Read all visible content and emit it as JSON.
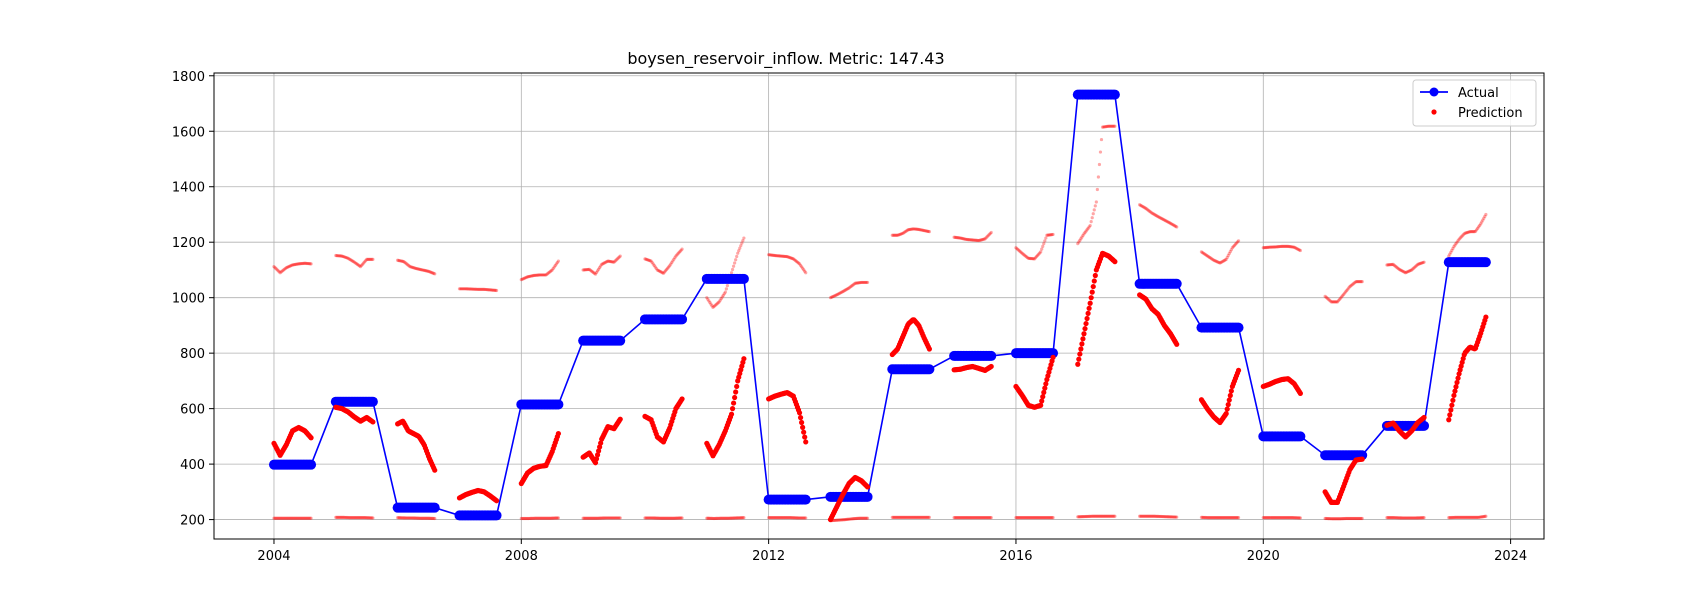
{
  "chart_data": {
    "type": "line",
    "title": "boysen_reservoir_inflow. Metric: 147.43",
    "xlabel": "",
    "ylabel": "",
    "xlim": [
      2003.03,
      2024.54
    ],
    "ylim": [
      130,
      1810
    ],
    "xticks": [
      2004,
      2008,
      2012,
      2016,
      2020,
      2024
    ],
    "yticks": [
      200,
      400,
      600,
      800,
      1000,
      1200,
      1400,
      1600,
      1800
    ],
    "grid": true,
    "legend_position": "top-right",
    "colors": {
      "actual": "#0000ff",
      "prediction": "#ff0000"
    },
    "series": [
      {
        "name": "Actual",
        "style": "line-with-markers",
        "color": "#0000ff",
        "points": [
          [
            2004.0,
            398
          ],
          [
            2004.6,
            398
          ],
          [
            2005.0,
            625
          ],
          [
            2005.6,
            625
          ],
          [
            2006.0,
            243
          ],
          [
            2006.6,
            243
          ],
          [
            2007.0,
            215
          ],
          [
            2007.6,
            215
          ],
          [
            2008.0,
            615
          ],
          [
            2008.6,
            615
          ],
          [
            2009.0,
            845
          ],
          [
            2009.6,
            845
          ],
          [
            2010.0,
            922
          ],
          [
            2010.6,
            922
          ],
          [
            2011.0,
            1068
          ],
          [
            2011.6,
            1068
          ],
          [
            2012.0,
            272
          ],
          [
            2012.6,
            272
          ],
          [
            2013.0,
            282
          ],
          [
            2013.6,
            282
          ],
          [
            2014.0,
            742
          ],
          [
            2014.6,
            742
          ],
          [
            2015.0,
            790
          ],
          [
            2015.6,
            790
          ],
          [
            2016.0,
            800
          ],
          [
            2016.6,
            800
          ],
          [
            2017.0,
            1732
          ],
          [
            2017.6,
            1732
          ],
          [
            2018.0,
            1050
          ],
          [
            2018.6,
            1050
          ],
          [
            2019.0,
            892
          ],
          [
            2019.6,
            892
          ],
          [
            2020.0,
            500
          ],
          [
            2020.6,
            500
          ],
          [
            2021.0,
            432
          ],
          [
            2021.6,
            432
          ],
          [
            2022.0,
            538
          ],
          [
            2022.6,
            538
          ],
          [
            2023.0,
            1128
          ],
          [
            2023.6,
            1128
          ]
        ]
      },
      {
        "name": "Prediction",
        "style": "scatter",
        "color": "#ff0000",
        "segments": [
          {
            "x0": 2004.0,
            "x1": 2004.6,
            "y": [
              475,
              432,
              470,
              520,
              532,
              520,
              495
            ]
          },
          {
            "x0": 2005.0,
            "x1": 2005.6,
            "y": [
              605,
              600,
              588,
              570,
              555,
              568,
              552
            ]
          },
          {
            "x0": 2006.0,
            "x1": 2006.6,
            "y": [
              545,
              555,
              520,
              510,
              500,
              470,
              420,
              378
            ]
          },
          {
            "x0": 2007.0,
            "x1": 2007.6,
            "y": [
              278,
              290,
              298,
              305,
              300,
              285,
              268
            ]
          },
          {
            "x0": 2008.0,
            "x1": 2008.6,
            "y": [
              330,
              368,
              385,
              392,
              395,
              445,
              510
            ]
          },
          {
            "x0": 2009.0,
            "x1": 2009.6,
            "y": [
              425,
              440,
              405,
              490,
              535,
              528,
              562
            ]
          },
          {
            "x0": 2010.0,
            "x1": 2010.6,
            "y": [
              572,
              560,
              498,
              480,
              530,
              600,
              635
            ]
          },
          {
            "x0": 2011.0,
            "x1": 2011.6,
            "y": [
              475,
              430,
              470,
              520,
              580,
              700,
              780
            ]
          },
          {
            "x0": 2012.0,
            "x1": 2012.6,
            "y": [
              635,
              645,
              652,
              658,
              645,
              585,
              480
            ]
          },
          {
            "x0": 2013.0,
            "x1": 2013.6,
            "y": [
              200,
              245,
              290,
              330,
              352,
              340,
              318
            ]
          },
          {
            "x0": 2014.0,
            "x1": 2014.6,
            "y": [
              795,
              815,
              860,
              905,
              922,
              900,
              855,
              815
            ]
          },
          {
            "x0": 2015.0,
            "x1": 2015.6,
            "y": [
              740,
              742,
              748,
              752,
              745,
              738,
              752
            ]
          },
          {
            "x0": 2016.0,
            "x1": 2016.6,
            "y": [
              680,
              648,
              612,
              605,
              612,
              705,
              785
            ]
          },
          {
            "x0": 2017.0,
            "x1": 2017.6,
            "y": [
              760,
              870,
              980,
              1100,
              1160,
              1150,
              1130
            ]
          },
          {
            "x0": 2018.0,
            "x1": 2018.6,
            "y": [
              1010,
              995,
              960,
              940,
              900,
              870,
              832
            ]
          },
          {
            "x0": 2019.0,
            "x1": 2019.6,
            "y": [
              632,
              598,
              570,
              550,
              582,
              680,
              738
            ]
          },
          {
            "x0": 2020.0,
            "x1": 2020.6,
            "y": [
              680,
              688,
              698,
              705,
              708,
              690,
              655
            ]
          },
          {
            "x0": 2021.0,
            "x1": 2021.6,
            "y": [
              300,
              262,
              262,
              320,
              380,
              415,
              418
            ]
          },
          {
            "x0": 2022.0,
            "x1": 2022.6,
            "y": [
              540,
              548,
              520,
              498,
              520,
              550,
              568
            ]
          },
          {
            "x0": 2023.0,
            "x1": 2023.6,
            "y": [
              560,
              650,
              730,
              800,
              822,
              815,
              870,
              930
            ]
          }
        ]
      },
      {
        "name": "",
        "style": "scatter-faint",
        "color": "#ff0000",
        "segments": [
          {
            "x0": 2004.0,
            "x1": 2004.6,
            "y": [
              1112,
              1090,
              1108,
              1118,
              1122,
              1124,
              1122
            ]
          },
          {
            "x0": 2005.0,
            "x1": 2005.6,
            "y": [
              1152,
              1150,
              1142,
              1128,
              1112,
              1138,
              1138
            ]
          },
          {
            "x0": 2006.0,
            "x1": 2006.6,
            "y": [
              1135,
              1130,
              1112,
              1105,
              1100,
              1095,
              1086
            ]
          },
          {
            "x0": 2007.0,
            "x1": 2007.6,
            "y": [
              1032,
              1032,
              1031,
              1030,
              1030,
              1028,
              1026
            ]
          },
          {
            "x0": 2008.0,
            "x1": 2008.6,
            "y": [
              1065,
              1075,
              1080,
              1082,
              1082,
              1100,
              1132
            ]
          },
          {
            "x0": 2009.0,
            "x1": 2009.6,
            "y": [
              1100,
              1102,
              1085,
              1120,
              1132,
              1128,
              1150
            ]
          },
          {
            "x0": 2010.0,
            "x1": 2010.6,
            "y": [
              1140,
              1132,
              1100,
              1088,
              1115,
              1150,
              1175
            ]
          },
          {
            "x0": 2011.0,
            "x1": 2011.6,
            "y": [
              1000,
              965,
              985,
              1020,
              1090,
              1160,
              1215
            ]
          },
          {
            "x0": 2012.0,
            "x1": 2012.6,
            "y": [
              1155,
              1152,
              1150,
              1148,
              1140,
              1122,
              1090
            ]
          },
          {
            "x0": 2013.0,
            "x1": 2013.6,
            "y": [
              1000,
              1010,
              1022,
              1035,
              1052,
              1055,
              1055
            ]
          },
          {
            "x0": 2014.0,
            "x1": 2014.6,
            "y": [
              1225,
              1225,
              1232,
              1245,
              1248,
              1246,
              1242,
              1238
            ]
          },
          {
            "x0": 2015.0,
            "x1": 2015.6,
            "y": [
              1218,
              1215,
              1210,
              1208,
              1206,
              1212,
              1235
            ]
          },
          {
            "x0": 2016.0,
            "x1": 2016.6,
            "y": [
              1180,
              1160,
              1142,
              1140,
              1165,
              1225,
              1228
            ]
          },
          {
            "x0": 2017.0,
            "x1": 2017.6,
            "y": [
              1195,
              1230,
              1260,
              1345,
              1615,
              1618,
              1618
            ]
          },
          {
            "x0": 2018.0,
            "x1": 2018.6,
            "y": [
              1335,
              1322,
              1305,
              1292,
              1280,
              1268,
              1255
            ]
          },
          {
            "x0": 2019.0,
            "x1": 2019.6,
            "y": [
              1165,
              1150,
              1135,
              1125,
              1138,
              1180,
              1205
            ]
          },
          {
            "x0": 2020.0,
            "x1": 2020.6,
            "y": [
              1180,
              1182,
              1183,
              1185,
              1185,
              1182,
              1170
            ]
          },
          {
            "x0": 2021.0,
            "x1": 2021.6,
            "y": [
              1005,
              985,
              985,
              1012,
              1040,
              1058,
              1058
            ]
          },
          {
            "x0": 2022.0,
            "x1": 2022.6,
            "y": [
              1118,
              1120,
              1102,
              1090,
              1100,
              1120,
              1128
            ]
          },
          {
            "x0": 2023.0,
            "x1": 2023.6,
            "y": [
              1150,
              1185,
              1212,
              1232,
              1238,
              1238,
              1265,
              1300
            ]
          },
          {
            "x0": 2004.0,
            "x1": 2004.6,
            "y": [
              205,
              205,
              205,
              205,
              205,
              205
            ]
          },
          {
            "x0": 2005.0,
            "x1": 2005.6,
            "y": [
              208,
              208,
              207,
              207,
              207,
              206
            ]
          },
          {
            "x0": 2006.0,
            "x1": 2006.6,
            "y": [
              207,
              206,
              206,
              205,
              205,
              204
            ]
          },
          {
            "x0": 2008.0,
            "x1": 2008.6,
            "y": [
              204,
              204,
              205,
              205,
              205,
              206
            ]
          },
          {
            "x0": 2009.0,
            "x1": 2009.6,
            "y": [
              205,
              205,
              205,
              206,
              206,
              206
            ]
          },
          {
            "x0": 2010.0,
            "x1": 2010.6,
            "y": [
              206,
              206,
              205,
              205,
              205,
              206
            ]
          },
          {
            "x0": 2011.0,
            "x1": 2011.6,
            "y": [
              205,
              204,
              205,
              205,
              206,
              207
            ]
          },
          {
            "x0": 2012.0,
            "x1": 2012.6,
            "y": [
              207,
              207,
              207,
              207,
              206,
              206
            ]
          },
          {
            "x0": 2013.0,
            "x1": 2013.6,
            "y": [
              196,
              198,
              200,
              203,
              205,
              205
            ]
          },
          {
            "x0": 2014.0,
            "x1": 2014.6,
            "y": [
              208,
              208,
              208,
              208,
              208,
              208
            ]
          },
          {
            "x0": 2015.0,
            "x1": 2015.6,
            "y": [
              207,
              207,
              207,
              207,
              207,
              207
            ]
          },
          {
            "x0": 2016.0,
            "x1": 2016.6,
            "y": [
              207,
              207,
              207,
              207,
              207,
              207
            ]
          },
          {
            "x0": 2017.0,
            "x1": 2017.6,
            "y": [
              210,
              211,
              212,
              212,
              212,
              212
            ]
          },
          {
            "x0": 2018.0,
            "x1": 2018.6,
            "y": [
              212,
              212,
              212,
              211,
              210,
              209
            ]
          },
          {
            "x0": 2019.0,
            "x1": 2019.6,
            "y": [
              208,
              207,
              207,
              207,
              207,
              207
            ]
          },
          {
            "x0": 2020.0,
            "x1": 2020.6,
            "y": [
              207,
              207,
              207,
              207,
              207,
              206
            ]
          },
          {
            "x0": 2021.0,
            "x1": 2021.6,
            "y": [
              204,
              203,
              203,
              204,
              204,
              204
            ]
          },
          {
            "x0": 2022.0,
            "x1": 2022.6,
            "y": [
              207,
              207,
              206,
              206,
              206,
              207
            ]
          },
          {
            "x0": 2023.0,
            "x1": 2023.6,
            "y": [
              207,
              208,
              208,
              208,
              208,
              212
            ]
          }
        ]
      }
    ]
  }
}
